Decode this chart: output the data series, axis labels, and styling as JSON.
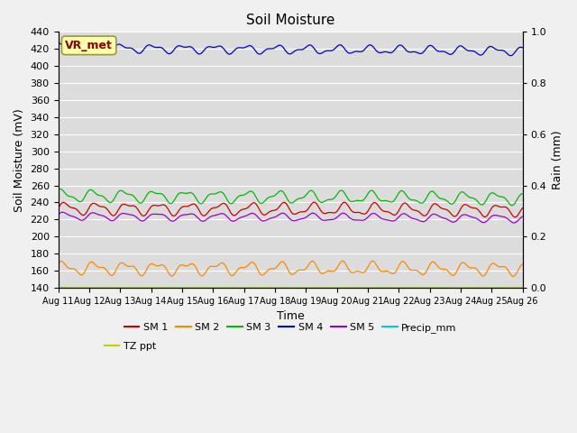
{
  "title": "Soil Moisture",
  "ylabel_left": "Soil Moisture (mV)",
  "ylabel_right": "Rain (mm)",
  "xlabel": "Time",
  "ylim_left": [
    140,
    440
  ],
  "ylim_right": [
    0.0,
    1.0
  ],
  "date_start": 11,
  "date_end": 26,
  "bg_color": "#dcdcdc",
  "fig_color": "#f0f0f0",
  "vr_met_text": "VR_met",
  "vr_met_bg": "#ffffaa",
  "vr_met_text_color": "#8b0000",
  "sm1_color": "#cc0000",
  "sm2_color": "#ff8800",
  "sm3_color": "#00bb00",
  "sm4_color": "#0000cc",
  "sm5_color": "#9900cc",
  "precip_color": "#00cccc",
  "tz_color": "#cccc00",
  "legend_labels": [
    "SM 1",
    "SM 2",
    "SM 3",
    "SM 4",
    "SM 5",
    "Precip_mm",
    "TZ ppt"
  ],
  "legend_colors": [
    "#cc0000",
    "#ff8800",
    "#00bb00",
    "#0000cc",
    "#9900cc",
    "#00cccc",
    "#cccc00"
  ]
}
